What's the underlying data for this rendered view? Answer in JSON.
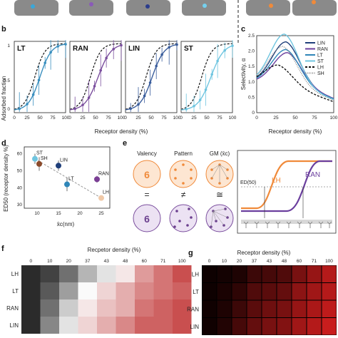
{
  "panels": {
    "b": {
      "letter": "b",
      "ylabel": "Adsorbed fraction",
      "xlabel": "Receptor density (%)",
      "xticks": [
        "0",
        "25",
        "50",
        "75",
        "100"
      ],
      "yticks": [
        "0",
        "0.5",
        "1"
      ],
      "subplots": [
        {
          "name": "LT",
          "color": "#3a8fbf"
        },
        {
          "name": "RAN",
          "color": "#7b4f9e"
        },
        {
          "name": "LIN",
          "color": "#3a5d9c"
        },
        {
          "name": "ST",
          "color": "#6fc5e0"
        }
      ]
    },
    "c": {
      "letter": "c",
      "ylabel": "Selectivity, α",
      "xlabel": "Receptor density (%)",
      "xticks": [
        "0",
        "25",
        "50",
        "75",
        "100"
      ],
      "yticks": [
        "0",
        "0.5",
        "1.0",
        "1.5",
        "2.0",
        "2.5"
      ],
      "legend": [
        "LIN",
        "RAN",
        "LT",
        "ST",
        "LH",
        "SH"
      ]
    },
    "d": {
      "letter": "d",
      "ylabel": "ED50 (receptor density %)",
      "xlabel": "x̄c(nm)",
      "xticks": [
        "10",
        "15",
        "20",
        "25"
      ],
      "yticks": [
        "30",
        "40",
        "50",
        "60"
      ],
      "points": [
        {
          "name": "ST",
          "x": 9.5,
          "y": 57,
          "err": 3,
          "color": "#6fc5e0"
        },
        {
          "name": "SH",
          "x": 10.5,
          "y": 54,
          "err": 4,
          "color": "#8b4a2b"
        },
        {
          "name": "LIN",
          "x": 15,
          "y": 53,
          "err": 3,
          "color": "#1f3f7a"
        },
        {
          "name": "LT",
          "x": 17,
          "y": 42,
          "err": 4,
          "color": "#2f86b8"
        },
        {
          "name": "RAN",
          "x": 24,
          "y": 45,
          "err": 2,
          "color": "#7b3f95"
        },
        {
          "name": "LH",
          "x": 25,
          "y": 34,
          "err": 1,
          "color": "#f0c9a8"
        }
      ]
    },
    "e": {
      "letter": "e",
      "columns": [
        "Valency",
        "Pattern",
        "GM (x̄c)"
      ],
      "valency_value": "6",
      "relations": [
        "=",
        "≠",
        "≅"
      ],
      "sigmoid_labels": {
        "left": "LH",
        "right": "RAN",
        "ed": "ED(50)"
      }
    },
    "f": {
      "letter": "f",
      "title": "Recpetor density (%)",
      "xticks": [
        "0",
        "10",
        "20",
        "37",
        "43",
        "48",
        "60",
        "71",
        "100"
      ],
      "rows": [
        "LH",
        "LT",
        "RAN",
        "LIN"
      ],
      "values": [
        [
          0.05,
          0.1,
          0.2,
          0.35,
          0.45,
          0.55,
          0.75,
          0.85,
          0.95
        ],
        [
          0.05,
          0.15,
          0.3,
          0.5,
          0.6,
          0.7,
          0.8,
          0.85,
          0.9
        ],
        [
          0.05,
          0.2,
          0.4,
          0.55,
          0.65,
          0.7,
          0.85,
          0.9,
          0.95
        ],
        [
          0.05,
          0.25,
          0.45,
          0.6,
          0.7,
          0.8,
          0.9,
          0.9,
          0.95
        ]
      ]
    },
    "g": {
      "letter": "g",
      "title": "Receptor density (%)",
      "xticks": [
        "0",
        "10",
        "20",
        "37",
        "43",
        "48",
        "60",
        "71",
        "100"
      ],
      "rows": [
        "LH",
        "LT",
        "RAN",
        "LIN"
      ]
    }
  }
}
